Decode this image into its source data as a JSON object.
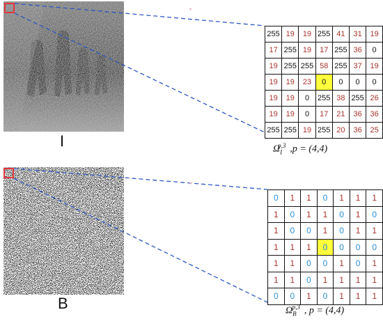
{
  "colors": {
    "highlight": "#ffff3c",
    "zoom_box": "#e0393e",
    "dashed_line": "#2d56c2",
    "value_black": "#111111",
    "value_red": "#a8332c",
    "value_blue": "#2b8fd6"
  },
  "top": {
    "image_label": "I",
    "caption": {
      "symbol": "Ω",
      "sub": "I",
      "sup": "p,3",
      "tail": ",p = (4,4)"
    },
    "grid": [
      [
        "255",
        "19",
        "19",
        "255",
        "41",
        "31",
        "19"
      ],
      [
        "17",
        "255",
        "19",
        "17",
        "255",
        "36",
        "0"
      ],
      [
        "19",
        "255",
        "255",
        "58",
        "255",
        "37",
        "19"
      ],
      [
        "19",
        "19",
        "23",
        "0",
        "0",
        "0",
        "0"
      ],
      [
        "19",
        "19",
        "0",
        "255",
        "38",
        "255",
        "26"
      ],
      [
        "19",
        "19",
        "0",
        "17",
        "21",
        "36",
        "36"
      ],
      [
        "255",
        "255",
        "19",
        "255",
        "20",
        "36",
        "25"
      ]
    ],
    "grid_colors": [
      [
        "k",
        "r",
        "r",
        "k",
        "r",
        "r",
        "r"
      ],
      [
        "r",
        "k",
        "r",
        "r",
        "k",
        "r",
        "k"
      ],
      [
        "r",
        "k",
        "k",
        "r",
        "k",
        "r",
        "r"
      ],
      [
        "r",
        "r",
        "r",
        "k",
        "k",
        "k",
        "k"
      ],
      [
        "r",
        "r",
        "k",
        "k",
        "r",
        "k",
        "r"
      ],
      [
        "r",
        "r",
        "k",
        "r",
        "r",
        "r",
        "r"
      ],
      [
        "k",
        "k",
        "r",
        "k",
        "r",
        "r",
        "r"
      ]
    ]
  },
  "bottom": {
    "image_label": "B",
    "caption": {
      "symbol": "Ω",
      "sub": "B",
      "sup": "p,3",
      "tail": ", p = (4,4)"
    },
    "grid": [
      [
        "0",
        "1",
        "1",
        "0",
        "1",
        "1",
        "1"
      ],
      [
        "1",
        "0",
        "1",
        "1",
        "0",
        "1",
        "0"
      ],
      [
        "1",
        "0",
        "0",
        "1",
        "0",
        "1",
        "1"
      ],
      [
        "1",
        "1",
        "1",
        "0",
        "0",
        "0",
        "0"
      ],
      [
        "1",
        "1",
        "0",
        "0",
        "1",
        "0",
        "1"
      ],
      [
        "1",
        "1",
        "0",
        "1",
        "1",
        "1",
        "1"
      ],
      [
        "0",
        "0",
        "1",
        "0",
        "1",
        "1",
        "1"
      ]
    ]
  }
}
